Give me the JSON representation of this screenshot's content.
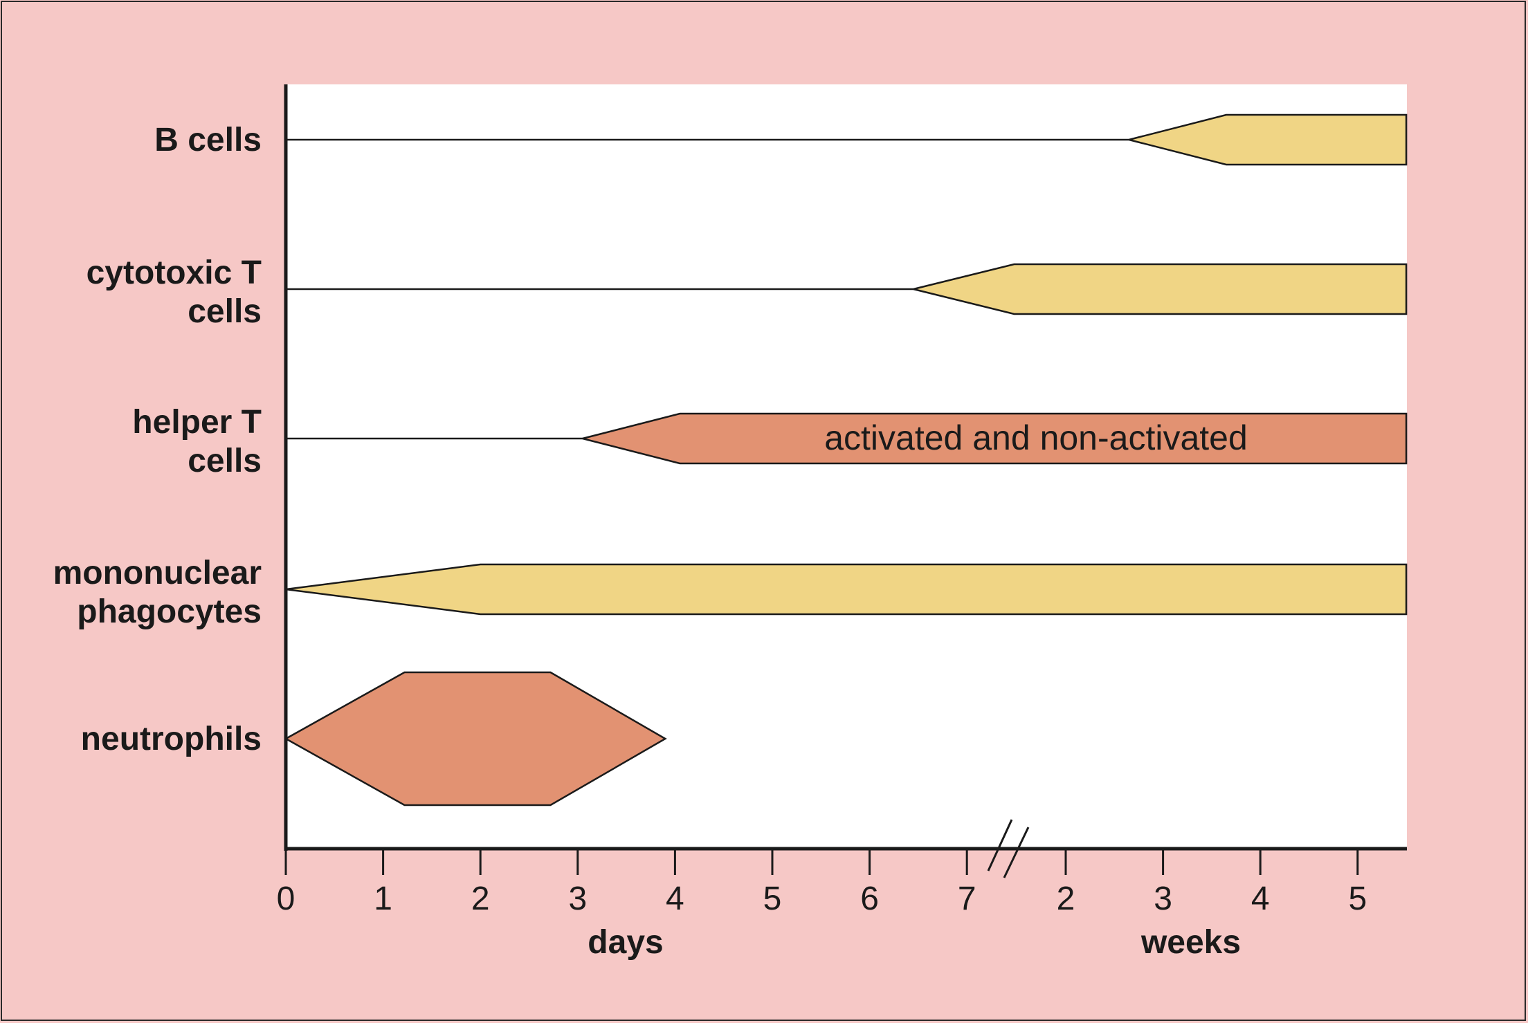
{
  "chart_data": {
    "type": "timeline",
    "title": "",
    "rows": [
      {
        "label_lines": [
          "B cells"
        ],
        "color": "#f0d585",
        "shape": "rise",
        "start_week": 2.65,
        "full_week": 3.65,
        "end_week": 5.5,
        "annotation": ""
      },
      {
        "label_lines": [
          "cytotoxic T",
          "cells"
        ],
        "color": "#f0d585",
        "shape": "rise",
        "start_day": 6.45,
        "full_week": 1.47,
        "end_week": 5.5,
        "annotation": ""
      },
      {
        "label_lines": [
          "helper T",
          "cells"
        ],
        "color": "#e29272",
        "shape": "rise",
        "start_day": 3.05,
        "full_day": 4.05,
        "end_week": 5.5,
        "annotation": "activated and non-activated"
      },
      {
        "label_lines": [
          "mononuclear",
          "phagocytes"
        ],
        "color": "#f0d585",
        "shape": "rise",
        "start_day": 0,
        "full_day": 2.0,
        "end_week": 5.5,
        "annotation": ""
      },
      {
        "label_lines": [
          "neutrophils"
        ],
        "color": "#e29272",
        "shape": "peak",
        "start_day": 0,
        "peak_start_day": 1.22,
        "peak_end_day": 2.72,
        "end_day": 3.9,
        "annotation": ""
      }
    ],
    "x_axis": {
      "day_ticks": [
        "0",
        "1",
        "2",
        "3",
        "4",
        "5",
        "6",
        "7"
      ],
      "week_ticks": [
        "2",
        "3",
        "4",
        "5"
      ],
      "day_label": "days",
      "week_label": "weeks",
      "axis_break_after_day": 7
    }
  },
  "colors": {
    "page_background": "#f6c8c6",
    "plot_background": "#ffffff",
    "yellow_band": "#f0d585",
    "salmon_band": "#e29272",
    "line": "#1a1a1a"
  }
}
